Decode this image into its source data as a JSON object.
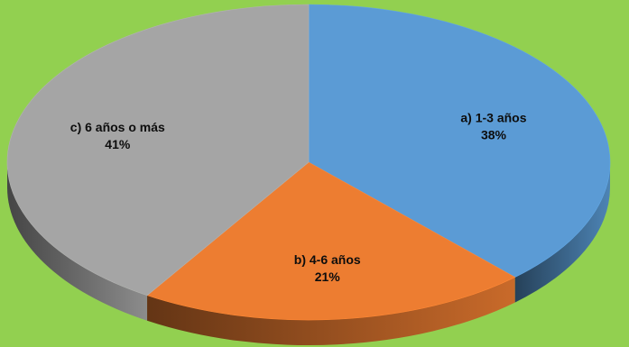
{
  "chart_data": {
    "type": "pie",
    "variant": "3d",
    "title": "",
    "legend": "none",
    "start_angle_deg": 0,
    "direction": "clockwise",
    "slices": [
      {
        "name": "a) 1-3 años",
        "value": 38,
        "label": "38%",
        "color": "#5B9BD5"
      },
      {
        "name": "b) 4-6 años",
        "value": 21,
        "label": "21%",
        "color": "#ED7D31"
      },
      {
        "name": "c) 6 años o más",
        "value": 41,
        "label": "41%",
        "color": "#A5A5A5"
      }
    ]
  },
  "colors": {
    "background": "#92D050"
  }
}
